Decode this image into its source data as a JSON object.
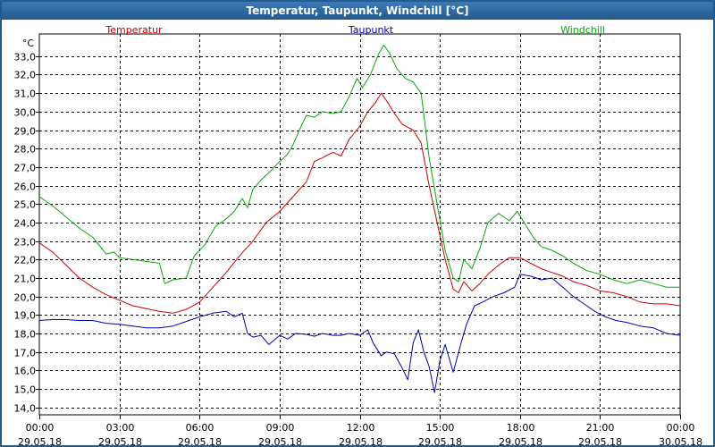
{
  "window": {
    "title": "Temperatur, Taupunkt, Windchill [°C]"
  },
  "chart_data": {
    "type": "line",
    "title": "Temperatur, Taupunkt, Windchill [°C]",
    "ylabel": "°C",
    "ylim": [
      13.6,
      34.2
    ],
    "yticks": [
      "14,0",
      "15,0",
      "16,0",
      "17,0",
      "18,0",
      "19,0",
      "20,0",
      "21,0",
      "22,0",
      "23,0",
      "24,0",
      "25,0",
      "26,0",
      "27,0",
      "28,0",
      "29,0",
      "30,0",
      "31,0",
      "32,0",
      "33,0"
    ],
    "xlim": [
      0,
      24
    ],
    "xticks": [
      {
        "t": 0,
        "time": "00:00",
        "date": "29.05.18"
      },
      {
        "t": 3,
        "time": "03:00",
        "date": "29.05.18"
      },
      {
        "t": 6,
        "time": "06:00",
        "date": "29.05.18"
      },
      {
        "t": 9,
        "time": "09:00",
        "date": "29.05.18"
      },
      {
        "t": 12,
        "time": "12:00",
        "date": "29.05.18"
      },
      {
        "t": 15,
        "time": "15:00",
        "date": "29.05.18"
      },
      {
        "t": 18,
        "time": "18:00",
        "date": "29.05.18"
      },
      {
        "t": 21,
        "time": "21:00",
        "date": "29.05.18"
      },
      {
        "t": 24,
        "time": "00:00",
        "date": "30.05.18"
      }
    ],
    "grid": true,
    "series": [
      {
        "name": "Temperatur",
        "color": "#cc0000",
        "points": [
          [
            0,
            22.9
          ],
          [
            0.5,
            22.4
          ],
          [
            1,
            21.7
          ],
          [
            1.5,
            21.0
          ],
          [
            2,
            20.5
          ],
          [
            2.5,
            20.1
          ],
          [
            3,
            19.8
          ],
          [
            3.5,
            19.5
          ],
          [
            4,
            19.35
          ],
          [
            4.5,
            19.2
          ],
          [
            5,
            19.1
          ],
          [
            5.5,
            19.3
          ],
          [
            6,
            19.7
          ],
          [
            6.5,
            20.5
          ],
          [
            7,
            21.3
          ],
          [
            7.5,
            22.2
          ],
          [
            8,
            23.0
          ],
          [
            8.5,
            24.0
          ],
          [
            9,
            24.6
          ],
          [
            9.5,
            25.4
          ],
          [
            10,
            26.2
          ],
          [
            10.3,
            27.3
          ],
          [
            10.6,
            27.5
          ],
          [
            11,
            27.8
          ],
          [
            11.3,
            27.6
          ],
          [
            11.6,
            28.5
          ],
          [
            12,
            29.2
          ],
          [
            12.3,
            30.0
          ],
          [
            12.6,
            30.5
          ],
          [
            12.8,
            31.0
          ],
          [
            13,
            30.6
          ],
          [
            13.3,
            29.9
          ],
          [
            13.6,
            29.3
          ],
          [
            14,
            29.0
          ],
          [
            14.3,
            28.3
          ],
          [
            14.6,
            26.0
          ],
          [
            14.9,
            24.0
          ],
          [
            15.2,
            22.0
          ],
          [
            15.5,
            20.4
          ],
          [
            15.7,
            20.2
          ],
          [
            15.9,
            20.8
          ],
          [
            16.2,
            20.3
          ],
          [
            16.5,
            20.7
          ],
          [
            16.8,
            21.2
          ],
          [
            17.2,
            21.7
          ],
          [
            17.6,
            22.1
          ],
          [
            18,
            22.1
          ],
          [
            18.4,
            21.8
          ],
          [
            18.8,
            21.5
          ],
          [
            19.2,
            21.3
          ],
          [
            19.6,
            21.1
          ],
          [
            20,
            20.8
          ],
          [
            20.5,
            20.6
          ],
          [
            21,
            20.3
          ],
          [
            21.5,
            20.2
          ],
          [
            22,
            20.0
          ],
          [
            22.5,
            19.7
          ],
          [
            23,
            19.6
          ],
          [
            23.5,
            19.6
          ],
          [
            24,
            19.5
          ]
        ]
      },
      {
        "name": "Taupunkt",
        "color": "#0000aa",
        "points": [
          [
            0,
            18.7
          ],
          [
            0.5,
            18.75
          ],
          [
            1,
            18.75
          ],
          [
            1.5,
            18.7
          ],
          [
            2,
            18.7
          ],
          [
            2.5,
            18.55
          ],
          [
            3,
            18.5
          ],
          [
            3.5,
            18.4
          ],
          [
            4,
            18.3
          ],
          [
            4.5,
            18.3
          ],
          [
            5,
            18.4
          ],
          [
            5.5,
            18.65
          ],
          [
            6,
            18.9
          ],
          [
            6.5,
            19.1
          ],
          [
            7,
            19.2
          ],
          [
            7.3,
            18.9
          ],
          [
            7.6,
            19.1
          ],
          [
            7.8,
            18.0
          ],
          [
            8,
            17.8
          ],
          [
            8.3,
            17.9
          ],
          [
            8.6,
            17.4
          ],
          [
            9,
            17.9
          ],
          [
            9.3,
            17.7
          ],
          [
            9.6,
            18.0
          ],
          [
            10,
            17.95
          ],
          [
            10.3,
            17.85
          ],
          [
            10.6,
            18.0
          ],
          [
            11,
            17.9
          ],
          [
            11.3,
            17.9
          ],
          [
            11.6,
            18.0
          ],
          [
            12,
            17.9
          ],
          [
            12.3,
            18.2
          ],
          [
            12.5,
            17.5
          ],
          [
            12.8,
            16.8
          ],
          [
            13,
            17.0
          ],
          [
            13.3,
            16.9
          ],
          [
            13.6,
            16.1
          ],
          [
            13.8,
            15.5
          ],
          [
            14,
            17.5
          ],
          [
            14.2,
            18.2
          ],
          [
            14.4,
            17.0
          ],
          [
            14.6,
            16.2
          ],
          [
            14.8,
            14.8
          ],
          [
            15,
            16.5
          ],
          [
            15.2,
            17.4
          ],
          [
            15.5,
            15.9
          ],
          [
            15.8,
            17.5
          ],
          [
            16,
            18.5
          ],
          [
            16.3,
            19.5
          ],
          [
            16.6,
            19.7
          ],
          [
            17,
            20.0
          ],
          [
            17.4,
            20.2
          ],
          [
            17.8,
            20.5
          ],
          [
            18,
            21.2
          ],
          [
            18.4,
            21.1
          ],
          [
            18.8,
            20.9
          ],
          [
            19.2,
            21.0
          ],
          [
            19.6,
            20.5
          ],
          [
            20,
            20.0
          ],
          [
            20.4,
            19.6
          ],
          [
            20.8,
            19.2
          ],
          [
            21.2,
            18.9
          ],
          [
            21.6,
            18.7
          ],
          [
            22,
            18.6
          ],
          [
            22.5,
            18.4
          ],
          [
            23,
            18.3
          ],
          [
            23.5,
            18.0
          ],
          [
            24,
            17.9
          ]
        ]
      },
      {
        "name": "Windchill",
        "color": "#00aa00",
        "points": [
          [
            0,
            25.4
          ],
          [
            0.5,
            24.9
          ],
          [
            1,
            24.3
          ],
          [
            1.5,
            23.7
          ],
          [
            2,
            23.2
          ],
          [
            2.5,
            22.3
          ],
          [
            2.8,
            22.4
          ],
          [
            3,
            22.1
          ],
          [
            3.5,
            22.0
          ],
          [
            4,
            21.9
          ],
          [
            4.5,
            21.8
          ],
          [
            4.7,
            20.7
          ],
          [
            5,
            20.9
          ],
          [
            5.5,
            21.0
          ],
          [
            5.8,
            22.2
          ],
          [
            6.2,
            22.8
          ],
          [
            6.6,
            23.8
          ],
          [
            7,
            24.2
          ],
          [
            7.3,
            24.6
          ],
          [
            7.6,
            25.3
          ],
          [
            7.8,
            24.8
          ],
          [
            8,
            25.8
          ],
          [
            8.3,
            26.3
          ],
          [
            8.6,
            26.7
          ],
          [
            9,
            27.3
          ],
          [
            9.3,
            27.7
          ],
          [
            9.5,
            28.2
          ],
          [
            9.8,
            29.2
          ],
          [
            10,
            29.8
          ],
          [
            10.3,
            29.7
          ],
          [
            10.6,
            30.0
          ],
          [
            11,
            29.9
          ],
          [
            11.3,
            30.0
          ],
          [
            11.6,
            30.8
          ],
          [
            11.9,
            31.8
          ],
          [
            12.1,
            31.3
          ],
          [
            12.4,
            32.0
          ],
          [
            12.7,
            33.1
          ],
          [
            12.9,
            33.6
          ],
          [
            13.1,
            33.2
          ],
          [
            13.4,
            32.3
          ],
          [
            13.7,
            31.8
          ],
          [
            14,
            31.6
          ],
          [
            14.3,
            31.0
          ],
          [
            14.6,
            27.5
          ],
          [
            14.9,
            25.0
          ],
          [
            15.2,
            22.5
          ],
          [
            15.5,
            21.0
          ],
          [
            15.7,
            20.8
          ],
          [
            15.9,
            22.0
          ],
          [
            16.2,
            21.5
          ],
          [
            16.5,
            22.6
          ],
          [
            16.8,
            24.0
          ],
          [
            17.2,
            24.5
          ],
          [
            17.6,
            24.1
          ],
          [
            17.9,
            24.6
          ],
          [
            18.2,
            23.9
          ],
          [
            18.5,
            23.2
          ],
          [
            18.8,
            22.7
          ],
          [
            19.2,
            22.5
          ],
          [
            19.6,
            22.2
          ],
          [
            20,
            21.8
          ],
          [
            20.5,
            21.4
          ],
          [
            21,
            21.2
          ],
          [
            21.5,
            20.9
          ],
          [
            22,
            20.7
          ],
          [
            22.5,
            20.9
          ],
          [
            23,
            20.7
          ],
          [
            23.5,
            20.5
          ],
          [
            24,
            20.5
          ]
        ]
      }
    ]
  }
}
